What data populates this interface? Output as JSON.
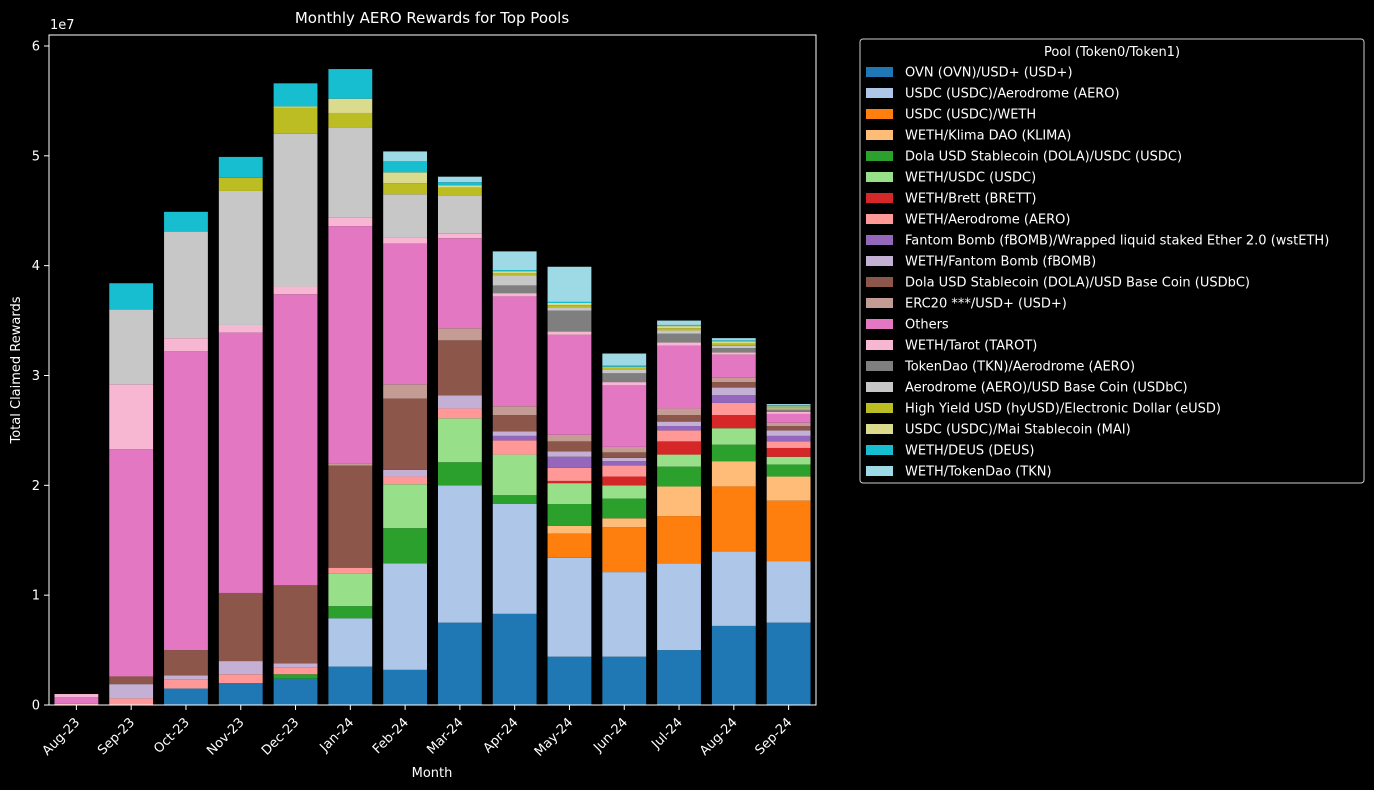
{
  "chart_data": {
    "type": "bar",
    "stacked": true,
    "title": "Monthly AERO Rewards for Top Pools",
    "xlabel": "Month",
    "ylabel": "Total Claimed Rewards",
    "y_offset_label": "1e7",
    "ylim": [
      0,
      61000000
    ],
    "y_ticks": [
      0,
      10000000,
      20000000,
      30000000,
      40000000,
      50000000,
      60000000
    ],
    "y_tick_labels": [
      "0",
      "1",
      "2",
      "3",
      "4",
      "5",
      "6"
    ],
    "legend_title": "Pool (Token0/Token1)",
    "legend_position": "outside right, top",
    "background": "#000000",
    "categories": [
      "Aug-23",
      "Sep-23",
      "Oct-23",
      "Nov-23",
      "Dec-23",
      "Jan-24",
      "Feb-24",
      "Mar-24",
      "Apr-24",
      "May-24",
      "Jun-24",
      "Jul-24",
      "Aug-24",
      "Sep-24"
    ],
    "series": [
      {
        "name": "OVN (OVN)/USD+ (USD+)",
        "color": "#1f77b4",
        "values": [
          0,
          0,
          1500000,
          2000000,
          2400000,
          3500000,
          3200000,
          7500000,
          8300000,
          4400000,
          4400000,
          5000000,
          7200000,
          7500000
        ]
      },
      {
        "name": "USDC (USDC)/Aerodrome (AERO)",
        "color": "#aec7e8",
        "values": [
          0,
          0,
          0,
          0,
          0,
          4400000,
          9700000,
          12500000,
          10000000,
          9000000,
          7700000,
          7900000,
          6800000,
          5600000
        ]
      },
      {
        "name": "USDC (USDC)/WETH",
        "color": "#ff7f0e",
        "values": [
          0,
          0,
          0,
          0,
          0,
          0,
          0,
          0,
          0,
          2200000,
          4100000,
          4300000,
          5900000,
          5500000
        ]
      },
      {
        "name": "WETH/Klima DAO (KLIMA)",
        "color": "#ffbb78",
        "values": [
          0,
          0,
          0,
          0,
          0,
          0,
          0,
          0,
          0,
          700000,
          800000,
          2700000,
          2300000,
          2200000
        ]
      },
      {
        "name": "Dola USD Stablecoin (DOLA)/USDC (USDC)",
        "color": "#2ca02c",
        "values": [
          0,
          0,
          0,
          0,
          400000,
          1100000,
          3200000,
          2100000,
          800000,
          2000000,
          1800000,
          1800000,
          1500000,
          1100000
        ]
      },
      {
        "name": "WETH/USDC (USDC)",
        "color": "#98df8a",
        "values": [
          0,
          0,
          0,
          0,
          0,
          3000000,
          4000000,
          4000000,
          3700000,
          1900000,
          1200000,
          1100000,
          1500000,
          700000
        ]
      },
      {
        "name": "WETH/Brett (BRETT)",
        "color": "#d62728",
        "values": [
          0,
          0,
          0,
          0,
          0,
          0,
          0,
          0,
          0,
          200000,
          800000,
          1200000,
          1200000,
          800000
        ]
      },
      {
        "name": "WETH/Aerodrome (AERO)",
        "color": "#ff9896",
        "values": [
          100000,
          600000,
          800000,
          800000,
          600000,
          500000,
          700000,
          900000,
          1300000,
          1200000,
          1000000,
          1000000,
          1100000,
          600000
        ]
      },
      {
        "name": "Fantom Bomb (fBOMB)/Wrapped liquid staked Ether 2.0 (wstETH)",
        "color": "#9467bd",
        "values": [
          0,
          0,
          0,
          0,
          0,
          0,
          0,
          0,
          400000,
          1000000,
          400000,
          400000,
          700000,
          500000
        ]
      },
      {
        "name": "WETH/Fantom Bomb (fBOMB)",
        "color": "#c5b0d5",
        "values": [
          0,
          1300000,
          400000,
          1200000,
          400000,
          0,
          600000,
          1200000,
          400000,
          500000,
          300000,
          400000,
          700000,
          500000
        ]
      },
      {
        "name": "Dola USD Stablecoin (DOLA)/USD Base Coin (USDbC)",
        "color": "#8c564b",
        "values": [
          0,
          700000,
          2300000,
          6200000,
          7100000,
          9300000,
          6500000,
          5000000,
          1500000,
          900000,
          500000,
          600000,
          500000,
          400000
        ]
      },
      {
        "name": "ERC20 ***/USD+ (USD+)",
        "color": "#c49c94",
        "values": [
          0,
          0,
          0,
          0,
          0,
          200000,
          1300000,
          1100000,
          800000,
          600000,
          500000,
          600000,
          400000,
          300000
        ]
      },
      {
        "name": "Others",
        "color": "#e377c2",
        "values": [
          600000,
          20700000,
          27200000,
          23700000,
          26500000,
          21600000,
          12800000,
          8200000,
          10000000,
          9100000,
          5600000,
          5700000,
          2100000,
          800000
        ]
      },
      {
        "name": "WETH/Tarot (TAROT)",
        "color": "#f7b6d2",
        "values": [
          300000,
          5900000,
          1200000,
          700000,
          700000,
          800000,
          600000,
          400000,
          300000,
          300000,
          300000,
          300000,
          200000,
          200000
        ]
      },
      {
        "name": "TokenDao (TKN)/Aerodrome (AERO)",
        "color": "#7f7f7f",
        "values": [
          0,
          0,
          0,
          0,
          0,
          0,
          0,
          0,
          700000,
          1900000,
          800000,
          800000,
          400000,
          200000
        ]
      },
      {
        "name": "Aerodrome (AERO)/USD Base Coin (USDbC)",
        "color": "#c7c7c7",
        "values": [
          0,
          6800000,
          9700000,
          12200000,
          13900000,
          8200000,
          3900000,
          3500000,
          900000,
          300000,
          300000,
          300000,
          200000,
          100000
        ]
      },
      {
        "name": "High Yield USD (hyUSD)/Electronic Dollar (eUSD)",
        "color": "#bcbd22",
        "values": [
          0,
          0,
          0,
          1200000,
          2400000,
          1300000,
          1000000,
          700000,
          200000,
          200000,
          200000,
          200000,
          200000,
          100000
        ]
      },
      {
        "name": "USDC (USDC)/Mai Stablecoin (MAI)",
        "color": "#dbdb8d",
        "values": [
          0,
          0,
          0,
          0,
          100000,
          1300000,
          1000000,
          200000,
          200000,
          200000,
          100000,
          200000,
          200000,
          100000
        ]
      },
      {
        "name": "WETH/DEUS (DEUS)",
        "color": "#17becf",
        "values": [
          0,
          2400000,
          1800000,
          1900000,
          2100000,
          2700000,
          1000000,
          300000,
          100000,
          100000,
          100000,
          100000,
          100000,
          100000
        ]
      },
      {
        "name": "WETH/TokenDao (TKN)",
        "color": "#9edae5",
        "values": [
          0,
          0,
          0,
          0,
          0,
          0,
          900000,
          500000,
          1700000,
          3200000,
          1100000,
          400000,
          200000,
          100000
        ]
      }
    ]
  }
}
